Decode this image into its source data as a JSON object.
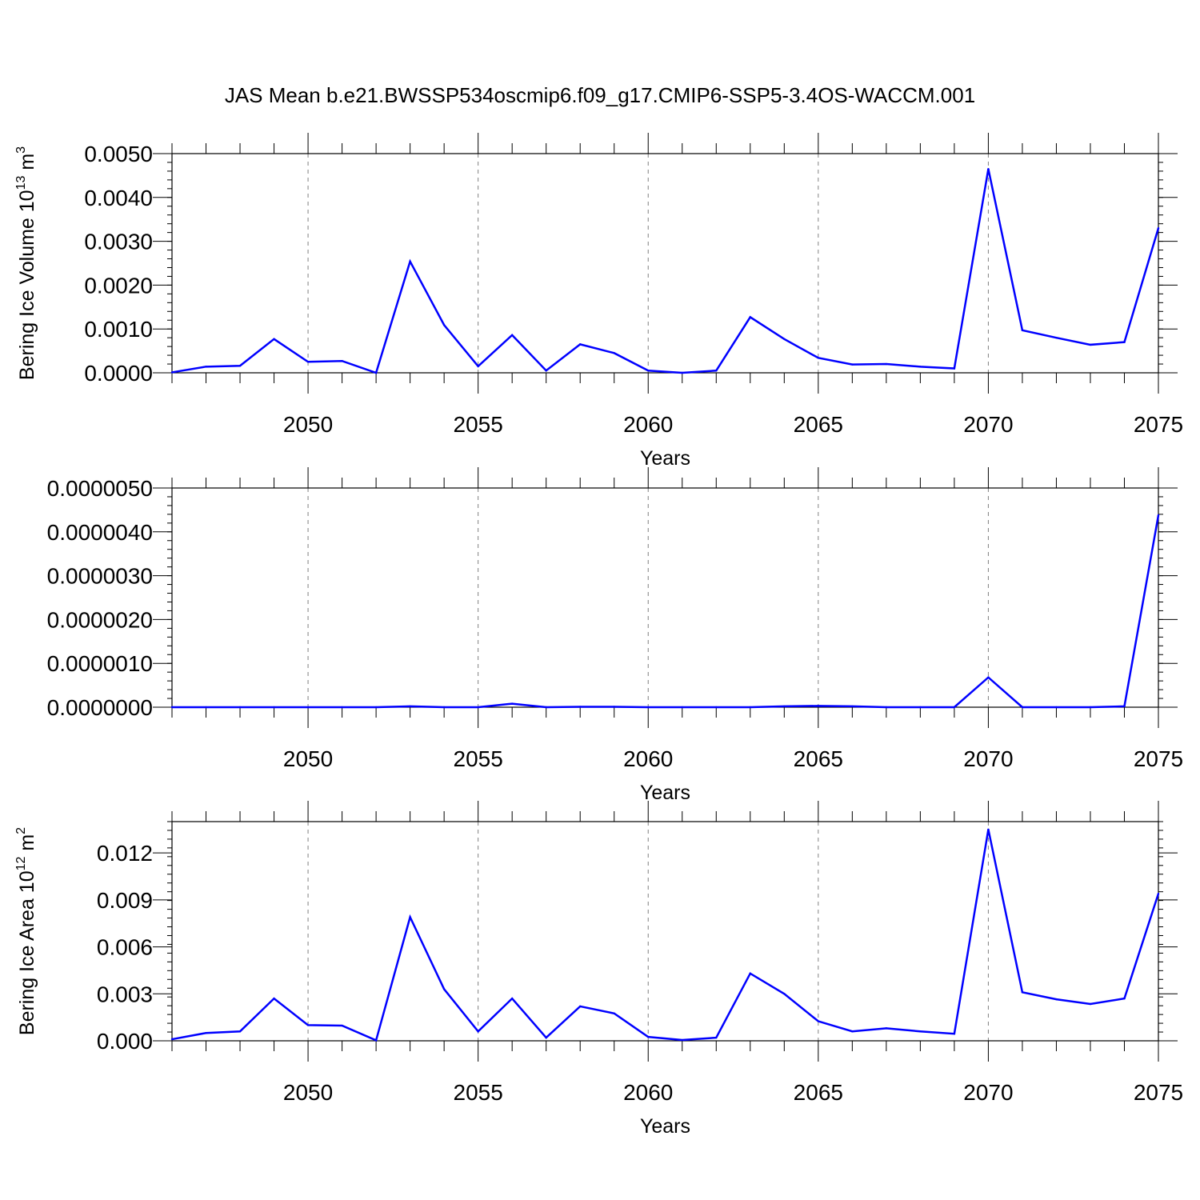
{
  "title": "JAS Mean b.e21.BWSSP534oscmip6.f09_g17.CMIP6-SSP5-3.4OS-WACCM.001",
  "colors": {
    "line": "#0000ff",
    "axis": "#000000",
    "grid": "#808080"
  },
  "chart_data": [
    {
      "type": "line",
      "xlabel": "Years",
      "ylabel": "Bering Ice Volume 10",
      "ylabel_sup": "13",
      "ylabel_unit": "m",
      "ylabel_unit_sup": "3",
      "xlim": [
        2046,
        2075
      ],
      "ylim": [
        0,
        0.005
      ],
      "xticks": [
        "2050",
        "2055",
        "2060",
        "2065",
        "2070",
        "2075"
      ],
      "yticks": [
        "0.0000",
        "0.0010",
        "0.0020",
        "0.0030",
        "0.0040",
        "0.0050"
      ],
      "grid": "dashed vertical at major x ticks",
      "x": [
        2046,
        2047,
        2048,
        2049,
        2050,
        2051,
        2052,
        2053,
        2054,
        2055,
        2056,
        2057,
        2058,
        2059,
        2060,
        2061,
        2062,
        2063,
        2064,
        2065,
        2066,
        2067,
        2068,
        2069,
        2070,
        2071,
        2072,
        2073,
        2074,
        2075
      ],
      "series": [
        {
          "values": [
            1e-05,
            0.00014,
            0.00016,
            0.00077,
            0.00025,
            0.00027,
            0.0,
            0.00254,
            0.00109,
            0.00015,
            0.00086,
            5e-05,
            0.00065,
            0.00045,
            5e-05,
            0.0,
            5e-05,
            0.00127,
            0.00077,
            0.00034,
            0.00019,
            0.0002,
            0.00014,
            0.0001,
            0.00465,
            0.00097,
            0.0008,
            0.00064,
            0.0007,
            0.0033
          ]
        }
      ]
    },
    {
      "type": "line",
      "xlabel": "Years",
      "ylabel": "",
      "xlim": [
        2046,
        2075
      ],
      "ylim": [
        0,
        5e-06
      ],
      "xticks": [
        "2050",
        "2055",
        "2060",
        "2065",
        "2070",
        "2075"
      ],
      "yticks": [
        "0.0000000",
        "0.0000010",
        "0.0000020",
        "0.0000030",
        "0.0000040",
        "0.0000050"
      ],
      "grid": "dashed vertical at major x ticks",
      "x": [
        2046,
        2047,
        2048,
        2049,
        2050,
        2051,
        2052,
        2053,
        2054,
        2055,
        2056,
        2057,
        2058,
        2059,
        2060,
        2061,
        2062,
        2063,
        2064,
        2065,
        2066,
        2067,
        2068,
        2069,
        2070,
        2071,
        2072,
        2073,
        2074,
        2075
      ],
      "series": [
        {
          "values": [
            0,
            0,
            0,
            0,
            0,
            0,
            0,
            2e-08,
            0,
            0,
            8e-08,
            0,
            1e-08,
            1e-08,
            0,
            0,
            0,
            0,
            2e-08,
            3e-08,
            2e-08,
            0,
            0,
            0,
            6.8e-07,
            0,
            0,
            0,
            2e-08,
            4.38e-06
          ]
        }
      ]
    },
    {
      "type": "line",
      "xlabel": "Years",
      "ylabel": "Bering Ice Area 10",
      "ylabel_sup": "12",
      "ylabel_unit": "m",
      "ylabel_unit_sup": "2",
      "xlim": [
        2046,
        2075
      ],
      "ylim": [
        0,
        0.014
      ],
      "xticks": [
        "2050",
        "2055",
        "2060",
        "2065",
        "2070",
        "2075"
      ],
      "yticks": [
        "0.000",
        "0.003",
        "0.006",
        "0.009",
        "0.012"
      ],
      "grid": "dashed vertical at major x ticks",
      "x": [
        2046,
        2047,
        2048,
        2049,
        2050,
        2051,
        2052,
        2053,
        2054,
        2055,
        2056,
        2057,
        2058,
        2059,
        2060,
        2061,
        2062,
        2063,
        2064,
        2065,
        2066,
        2067,
        2068,
        2069,
        2070,
        2071,
        2072,
        2073,
        2074,
        2075
      ],
      "series": [
        {
          "values": [
            0.0001,
            0.0005,
            0.0006,
            0.0027,
            0.001,
            0.00097,
            3e-05,
            0.0079,
            0.0033,
            0.0006,
            0.0027,
            0.0002,
            0.0022,
            0.00175,
            0.00025,
            5e-05,
            0.0002,
            0.0043,
            0.003,
            0.00125,
            0.0006,
            0.0008,
            0.0006,
            0.00045,
            0.0135,
            0.0031,
            0.00265,
            0.00235,
            0.0027,
            0.0094
          ]
        }
      ]
    }
  ]
}
